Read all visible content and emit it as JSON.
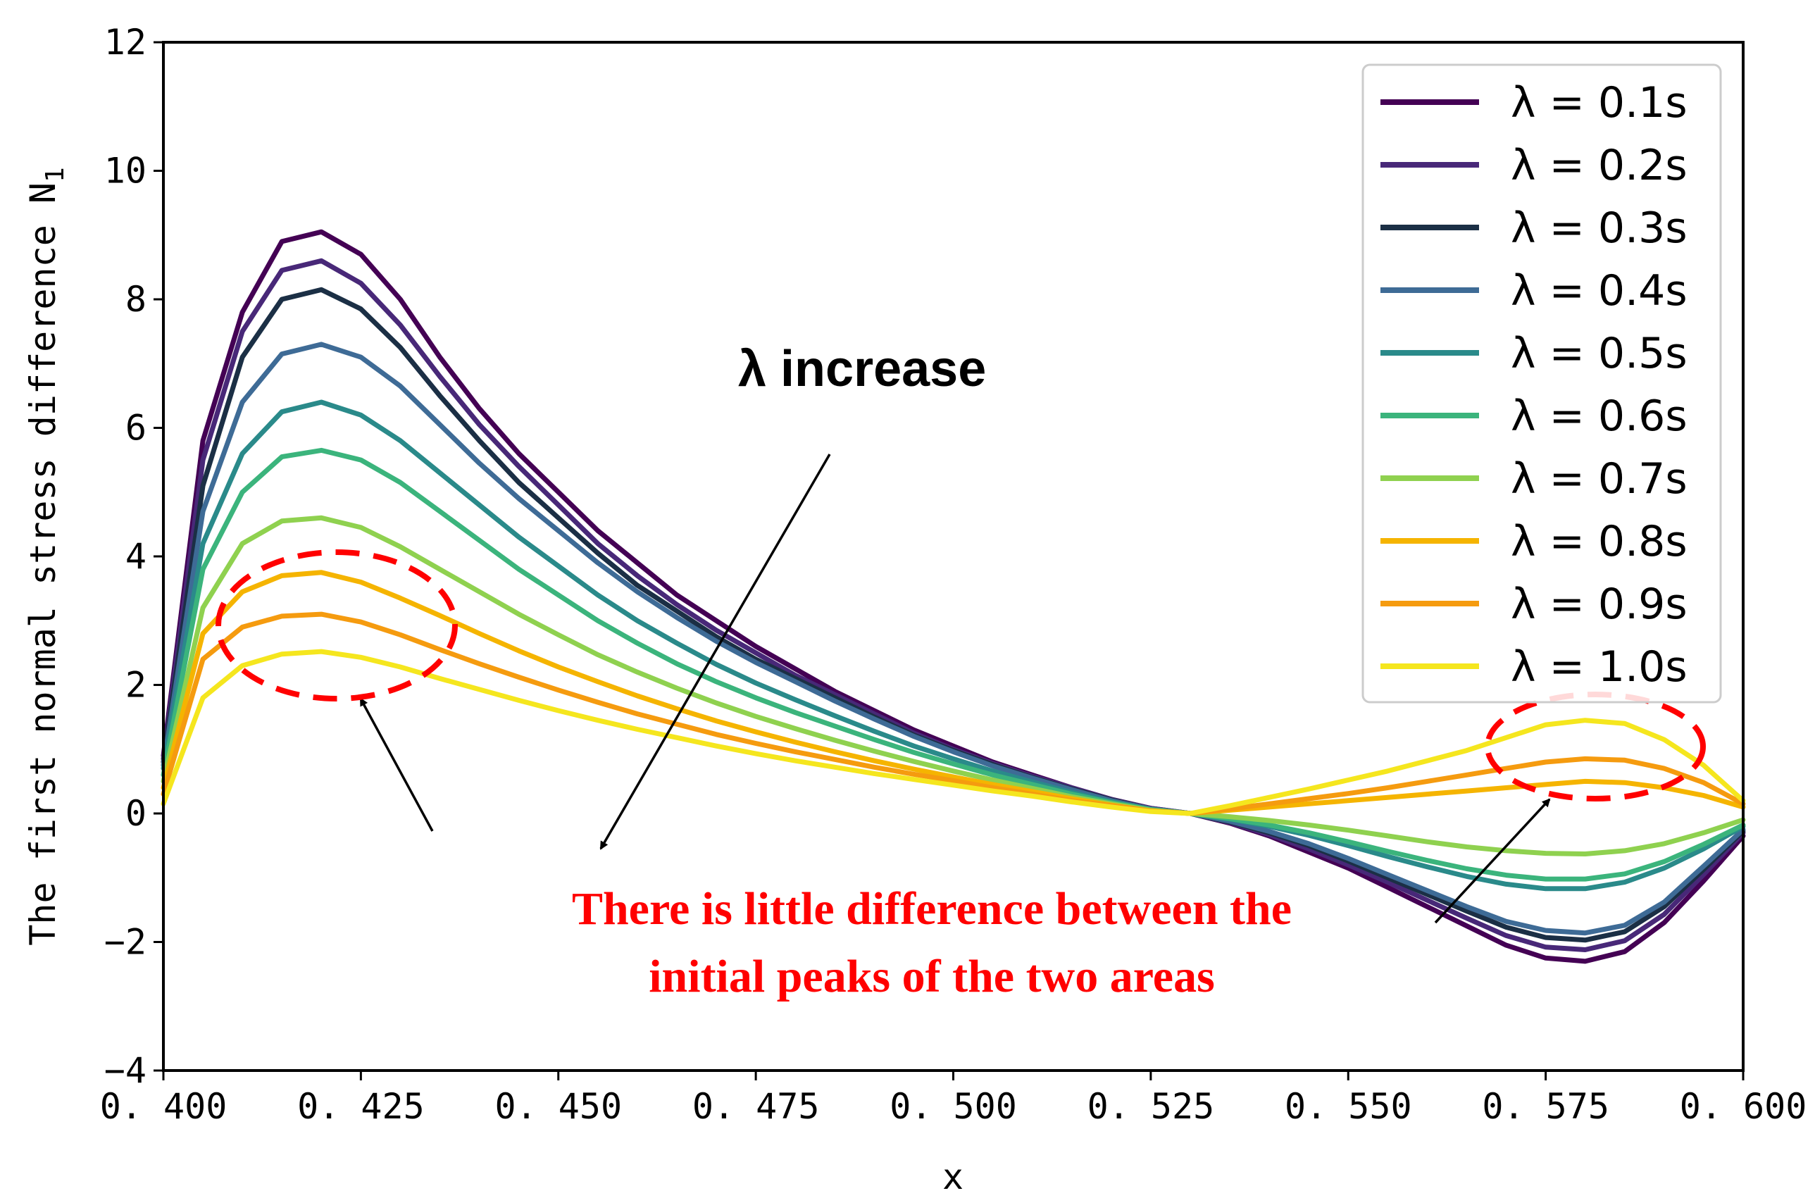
{
  "chart_data": {
    "type": "line",
    "xlabel": "x",
    "ylabel": "The first normal stress difference N",
    "ylabel_subscript": "1",
    "xlim": [
      0.4,
      0.6
    ],
    "ylim": [
      -4,
      12
    ],
    "xticks": [
      0.4,
      0.425,
      0.45,
      0.475,
      0.5,
      0.525,
      0.55,
      0.575,
      0.6
    ],
    "xtick_labels": [
      "0. 400",
      "0. 425",
      "0. 450",
      "0. 475",
      "0. 500",
      "0. 525",
      "0. 550",
      "0. 575",
      "0. 600"
    ],
    "yticks": [
      -4,
      -2,
      0,
      2,
      4,
      6,
      8,
      10,
      12
    ],
    "ytick_labels": [
      "−4",
      "−2",
      "0",
      "2",
      "4",
      "6",
      "8",
      "10",
      "12"
    ],
    "grid": false,
    "legend_position": "top-right",
    "x": [
      0.4,
      0.405,
      0.41,
      0.415,
      0.42,
      0.425,
      0.43,
      0.435,
      0.44,
      0.445,
      0.45,
      0.455,
      0.46,
      0.465,
      0.47,
      0.475,
      0.48,
      0.485,
      0.49,
      0.495,
      0.5,
      0.505,
      0.51,
      0.515,
      0.52,
      0.525,
      0.53,
      0.535,
      0.54,
      0.545,
      0.55,
      0.555,
      0.56,
      0.565,
      0.57,
      0.575,
      0.58,
      0.585,
      0.59,
      0.595,
      0.6
    ],
    "series": [
      {
        "name": "λ = 0.1s",
        "color": "#440154",
        "values": [
          0.9,
          5.8,
          7.8,
          8.9,
          9.05,
          8.7,
          8.0,
          7.1,
          6.3,
          5.6,
          5.0,
          4.4,
          3.9,
          3.4,
          3.0,
          2.6,
          2.25,
          1.9,
          1.6,
          1.3,
          1.05,
          0.8,
          0.6,
          0.4,
          0.22,
          0.08,
          0.0,
          -0.15,
          -0.35,
          -0.6,
          -0.85,
          -1.15,
          -1.45,
          -1.75,
          -2.05,
          -2.25,
          -2.3,
          -2.15,
          -1.7,
          -1.05,
          -0.35
        ]
      },
      {
        "name": "λ = 0.2s",
        "color": "#482878",
        "values": [
          0.85,
          5.5,
          7.5,
          8.45,
          8.6,
          8.25,
          7.6,
          6.8,
          6.05,
          5.4,
          4.8,
          4.2,
          3.7,
          3.25,
          2.85,
          2.5,
          2.15,
          1.85,
          1.55,
          1.25,
          1.0,
          0.78,
          0.58,
          0.4,
          0.22,
          0.08,
          0.0,
          -0.14,
          -0.33,
          -0.55,
          -0.8,
          -1.07,
          -1.35,
          -1.63,
          -1.9,
          -2.08,
          -2.12,
          -1.98,
          -1.57,
          -0.95,
          -0.3
        ]
      },
      {
        "name": "λ = 0.3s",
        "color": "#1b2f45",
        "values": [
          0.8,
          5.1,
          7.1,
          8.0,
          8.15,
          7.85,
          7.25,
          6.5,
          5.8,
          5.15,
          4.6,
          4.05,
          3.55,
          3.15,
          2.75,
          2.4,
          2.1,
          1.8,
          1.5,
          1.22,
          0.98,
          0.76,
          0.56,
          0.38,
          0.21,
          0.07,
          0.0,
          -0.13,
          -0.3,
          -0.5,
          -0.74,
          -1.0,
          -1.26,
          -1.52,
          -1.77,
          -1.93,
          -1.97,
          -1.84,
          -1.45,
          -0.87,
          -0.27
        ]
      },
      {
        "name": "λ = 0.4s",
        "color": "#3e6b96",
        "values": [
          0.75,
          4.7,
          6.4,
          7.15,
          7.3,
          7.1,
          6.65,
          6.05,
          5.45,
          4.9,
          4.4,
          3.9,
          3.45,
          3.05,
          2.68,
          2.35,
          2.05,
          1.75,
          1.47,
          1.2,
          0.96,
          0.74,
          0.55,
          0.37,
          0.2,
          0.07,
          0.0,
          -0.12,
          -0.28,
          -0.47,
          -0.7,
          -0.95,
          -1.2,
          -1.45,
          -1.68,
          -1.82,
          -1.86,
          -1.74,
          -1.38,
          -0.82,
          -0.25
        ]
      },
      {
        "name": "λ = 0.5s",
        "color": "#2a8a8a",
        "values": [
          0.7,
          4.2,
          5.6,
          6.25,
          6.4,
          6.2,
          5.8,
          5.3,
          4.8,
          4.3,
          3.85,
          3.4,
          3.0,
          2.65,
          2.32,
          2.03,
          1.77,
          1.52,
          1.28,
          1.05,
          0.85,
          0.66,
          0.49,
          0.33,
          0.18,
          0.06,
          0.0,
          -0.09,
          -0.2,
          -0.34,
          -0.5,
          -0.67,
          -0.83,
          -0.98,
          -1.1,
          -1.17,
          -1.17,
          -1.07,
          -0.85,
          -0.55,
          -0.2
        ]
      },
      {
        "name": "λ = 0.6s",
        "color": "#3bb47c",
        "values": [
          0.6,
          3.8,
          5.0,
          5.55,
          5.65,
          5.5,
          5.15,
          4.7,
          4.25,
          3.8,
          3.4,
          3.0,
          2.65,
          2.33,
          2.05,
          1.8,
          1.57,
          1.36,
          1.15,
          0.95,
          0.77,
          0.6,
          0.45,
          0.3,
          0.17,
          0.06,
          0.0,
          -0.08,
          -0.18,
          -0.3,
          -0.44,
          -0.59,
          -0.73,
          -0.86,
          -0.96,
          -1.02,
          -1.02,
          -0.94,
          -0.75,
          -0.48,
          -0.18
        ]
      },
      {
        "name": "λ = 0.7s",
        "color": "#8fd14f",
        "values": [
          0.5,
          3.2,
          4.2,
          4.55,
          4.6,
          4.45,
          4.15,
          3.8,
          3.45,
          3.1,
          2.78,
          2.47,
          2.2,
          1.95,
          1.72,
          1.51,
          1.32,
          1.14,
          0.97,
          0.81,
          0.66,
          0.52,
          0.39,
          0.26,
          0.15,
          0.05,
          0.0,
          -0.05,
          -0.11,
          -0.18,
          -0.26,
          -0.35,
          -0.44,
          -0.52,
          -0.58,
          -0.62,
          -0.63,
          -0.58,
          -0.47,
          -0.3,
          -0.1
        ]
      },
      {
        "name": "λ = 0.8s",
        "color": "#f5b400",
        "values": [
          0.4,
          2.8,
          3.45,
          3.7,
          3.75,
          3.6,
          3.35,
          3.08,
          2.8,
          2.53,
          2.28,
          2.05,
          1.83,
          1.63,
          1.44,
          1.27,
          1.11,
          0.96,
          0.82,
          0.69,
          0.57,
          0.45,
          0.34,
          0.23,
          0.13,
          0.04,
          0.0,
          0.05,
          0.1,
          0.15,
          0.2,
          0.25,
          0.3,
          0.35,
          0.4,
          0.45,
          0.5,
          0.48,
          0.4,
          0.28,
          0.1
        ]
      },
      {
        "name": "λ = 0.9s",
        "color": "#f59b0f",
        "values": [
          0.3,
          2.4,
          2.9,
          3.07,
          3.1,
          2.98,
          2.78,
          2.55,
          2.33,
          2.12,
          1.92,
          1.73,
          1.55,
          1.39,
          1.23,
          1.09,
          0.96,
          0.84,
          0.72,
          0.61,
          0.51,
          0.4,
          0.3,
          0.2,
          0.12,
          0.04,
          0.0,
          0.07,
          0.15,
          0.23,
          0.31,
          0.4,
          0.5,
          0.6,
          0.7,
          0.8,
          0.85,
          0.83,
          0.7,
          0.48,
          0.15
        ]
      },
      {
        "name": "λ = 1.0s",
        "color": "#f5e61e",
        "values": [
          0.15,
          1.8,
          2.3,
          2.48,
          2.52,
          2.43,
          2.28,
          2.1,
          1.93,
          1.76,
          1.6,
          1.45,
          1.31,
          1.18,
          1.05,
          0.93,
          0.82,
          0.72,
          0.62,
          0.53,
          0.44,
          0.35,
          0.27,
          0.18,
          0.1,
          0.03,
          0.0,
          0.12,
          0.25,
          0.38,
          0.52,
          0.66,
          0.82,
          0.98,
          1.18,
          1.38,
          1.45,
          1.4,
          1.15,
          0.75,
          0.2
        ]
      }
    ],
    "annotations": {
      "lambda_increase": "λ increase",
      "red_note_line1": "There is little difference between the",
      "red_note_line2": "initial peaks of the two areas"
    }
  },
  "colors": {
    "annotation_red": "#ff0000",
    "axis": "#000000",
    "background": "#ffffff"
  }
}
